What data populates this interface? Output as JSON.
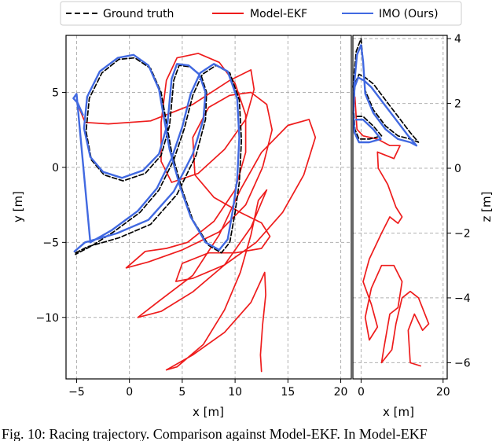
{
  "chart_data": [
    {
      "type": "line",
      "xlabel": "x [m]",
      "ylabel": "y [m]",
      "xlim": [
        -6,
        21
      ],
      "ylim": [
        -14.1,
        8.8
      ],
      "xticks": [
        -5,
        0,
        5,
        10,
        15,
        20
      ],
      "yticks": [
        -10,
        -5,
        0,
        5
      ],
      "grid": true,
      "legend": "top",
      "series": [
        {
          "name": "Ground truth",
          "color": "#000000",
          "dash": true,
          "points": [
            [
              -5.1,
              -5.7
            ],
            [
              -4.0,
              -5.3
            ],
            [
              -1.0,
              -4.7
            ],
            [
              2.0,
              -3.8
            ],
            [
              4.5,
              -1.8
            ],
            [
              6.3,
              0.8
            ],
            [
              7.2,
              3.2
            ],
            [
              7.3,
              5.0
            ],
            [
              6.8,
              6.1
            ],
            [
              5.8,
              6.7
            ],
            [
              4.7,
              6.8
            ],
            [
              4.2,
              5.8
            ],
            [
              3.8,
              2.8
            ],
            [
              3.0,
              0.8
            ],
            [
              1.5,
              -0.4
            ],
            [
              -0.6,
              -0.9
            ],
            [
              -2.4,
              -0.5
            ],
            [
              -3.6,
              0.5
            ],
            [
              -4.1,
              2.4
            ],
            [
              -3.8,
              4.6
            ],
            [
              -2.6,
              6.3
            ],
            [
              -1.0,
              7.2
            ],
            [
              0.5,
              7.3
            ],
            [
              2.0,
              6.6
            ],
            [
              3.0,
              5.0
            ],
            [
              3.5,
              3.0
            ],
            [
              4.0,
              1.0
            ],
            [
              5.0,
              -1.5
            ],
            [
              6.0,
              -3.5
            ],
            [
              7.5,
              -5.2
            ],
            [
              8.7,
              -5.7
            ],
            [
              9.5,
              -5.0
            ],
            [
              10.0,
              -3.0
            ],
            [
              10.4,
              -1.0
            ],
            [
              10.6,
              1.8
            ],
            [
              10.4,
              4.5
            ],
            [
              9.5,
              6.3
            ],
            [
              8.2,
              6.8
            ],
            [
              6.9,
              6.2
            ],
            [
              6.0,
              4.8
            ],
            [
              5.2,
              2.6
            ],
            [
              4.2,
              0.5
            ],
            [
              2.8,
              -1.5
            ],
            [
              1.0,
              -3.0
            ],
            [
              -1.5,
              -4.3
            ],
            [
              -3.5,
              -5.2
            ],
            [
              -5.1,
              -5.8
            ]
          ]
        },
        {
          "name": "Model-EKF",
          "color": "#ee1c1c",
          "dash": false,
          "points": [
            [
              -5.0,
              4.4
            ],
            [
              -4.2,
              3.0
            ],
            [
              -2.0,
              2.9
            ],
            [
              2.0,
              3.1
            ],
            [
              6.0,
              4.2
            ],
            [
              9.5,
              5.8
            ],
            [
              11.5,
              6.5
            ],
            [
              11.8,
              5.2
            ],
            [
              11.0,
              3.2
            ],
            [
              9.0,
              1.2
            ],
            [
              6.5,
              -0.4
            ],
            [
              4.0,
              -1.0
            ],
            [
              3.0,
              0.4
            ],
            [
              3.0,
              3.0
            ],
            [
              3.5,
              5.8
            ],
            [
              4.5,
              7.3
            ],
            [
              6.5,
              7.6
            ],
            [
              8.5,
              7.0
            ],
            [
              10.0,
              5.6
            ],
            [
              11.0,
              3.5
            ],
            [
              11.0,
              1.0
            ],
            [
              10.0,
              -1.5
            ],
            [
              8.0,
              -3.6
            ],
            [
              5.5,
              -5.0
            ],
            [
              3.5,
              -5.4
            ],
            [
              1.5,
              -5.6
            ],
            [
              -0.3,
              -6.7
            ],
            [
              1.8,
              -6.3
            ],
            [
              5.0,
              -5.5
            ],
            [
              8.5,
              -4.3
            ],
            [
              11.0,
              -2.5
            ],
            [
              12.6,
              0.0
            ],
            [
              13.5,
              2.5
            ],
            [
              13.0,
              4.2
            ],
            [
              11.5,
              5.0
            ],
            [
              9.5,
              4.8
            ],
            [
              7.5,
              4.0
            ],
            [
              6.0,
              2.0
            ],
            [
              6.2,
              -0.5
            ],
            [
              8.0,
              -2.0
            ],
            [
              10.5,
              -3.0
            ],
            [
              12.5,
              -3.7
            ],
            [
              13.3,
              -4.6
            ],
            [
              12.5,
              -5.4
            ],
            [
              10.0,
              -5.7
            ],
            [
              7.5,
              -5.7
            ],
            [
              5.0,
              -6.4
            ],
            [
              4.4,
              -7.6
            ],
            [
              6.0,
              -7.4
            ],
            [
              9.0,
              -6.5
            ],
            [
              12.0,
              -5.0
            ],
            [
              14.5,
              -3.0
            ],
            [
              16.5,
              -0.5
            ],
            [
              17.6,
              2.0
            ],
            [
              17.0,
              3.2
            ],
            [
              15.0,
              2.8
            ],
            [
              12.5,
              1.0
            ],
            [
              10.5,
              -1.5
            ],
            [
              8.5,
              -4.5
            ],
            [
              6.0,
              -7.2
            ],
            [
              3.0,
              -8.8
            ],
            [
              0.8,
              -10.0
            ],
            [
              3.0,
              -9.6
            ],
            [
              6.0,
              -8.3
            ],
            [
              9.0,
              -6.5
            ],
            [
              11.5,
              -4.0
            ],
            [
              13.0,
              -1.5
            ],
            [
              12.2,
              -2.2
            ],
            [
              11.5,
              -4.5
            ],
            [
              10.5,
              -7.0
            ],
            [
              9.0,
              -9.5
            ],
            [
              7.0,
              -11.8
            ],
            [
              4.5,
              -13.3
            ],
            [
              3.5,
              -13.5
            ],
            [
              6.0,
              -12.5
            ],
            [
              9.0,
              -11.0
            ],
            [
              11.5,
              -9.0
            ],
            [
              12.8,
              -7.0
            ],
            [
              12.9,
              -8.5
            ],
            [
              12.6,
              -10.5
            ],
            [
              12.4,
              -12.5
            ],
            [
              12.5,
              -13.6
            ]
          ]
        },
        {
          "name": "IMO (Ours)",
          "color": "#4169e1",
          "dash": false,
          "points": [
            [
              -5.2,
              -5.6
            ],
            [
              -4.2,
              -5.0
            ],
            [
              -1.2,
              -4.4
            ],
            [
              1.8,
              -3.5
            ],
            [
              4.2,
              -1.6
            ],
            [
              6.0,
              0.9
            ],
            [
              7.0,
              3.2
            ],
            [
              7.2,
              5.0
            ],
            [
              6.6,
              6.2
            ],
            [
              5.6,
              6.8
            ],
            [
              4.5,
              6.9
            ],
            [
              4.0,
              5.9
            ],
            [
              3.6,
              2.9
            ],
            [
              2.8,
              0.9
            ],
            [
              1.3,
              -0.2
            ],
            [
              -0.7,
              -0.7
            ],
            [
              -2.5,
              -0.3
            ],
            [
              -3.7,
              0.7
            ],
            [
              -4.3,
              2.6
            ],
            [
              -4.0,
              4.7
            ],
            [
              -2.8,
              6.4
            ],
            [
              -1.1,
              7.3
            ],
            [
              0.4,
              7.5
            ],
            [
              1.8,
              6.8
            ],
            [
              2.8,
              5.2
            ],
            [
              3.3,
              3.2
            ],
            [
              3.8,
              1.2
            ],
            [
              4.8,
              -1.3
            ],
            [
              5.8,
              -3.3
            ],
            [
              7.2,
              -5.0
            ],
            [
              8.5,
              -5.5
            ],
            [
              9.3,
              -4.8
            ],
            [
              9.8,
              -2.8
            ],
            [
              10.2,
              -0.8
            ],
            [
              10.4,
              2.0
            ],
            [
              10.2,
              4.6
            ],
            [
              9.3,
              6.4
            ],
            [
              8.0,
              6.9
            ],
            [
              6.7,
              6.3
            ],
            [
              5.8,
              4.9
            ],
            [
              5.0,
              2.7
            ],
            [
              4.0,
              0.6
            ],
            [
              2.6,
              -1.4
            ],
            [
              0.8,
              -2.9
            ],
            [
              -1.7,
              -4.2
            ],
            [
              -3.7,
              -5.0
            ],
            [
              -5.0,
              4.9
            ],
            [
              -5.3,
              4.6
            ],
            [
              -4.9,
              4.3
            ],
            [
              -4.4,
              3.5
            ]
          ]
        }
      ]
    },
    {
      "type": "line",
      "xlabel": "x [m]",
      "ylabel": "z [m]",
      "xlim": [
        -2,
        21
      ],
      "ylim": [
        -6.5,
        4.1
      ],
      "xticks": [
        0,
        20
      ],
      "yticks": [
        -6,
        -4,
        -2,
        0,
        2,
        4
      ],
      "grid": true,
      "series": [
        {
          "name": "Ground truth",
          "color": "#000000",
          "dash": true,
          "points": [
            [
              -2.0,
              2.5
            ],
            [
              -1.2,
              3.6
            ],
            [
              0.0,
              4.0
            ],
            [
              0.4,
              3.4
            ],
            [
              1.0,
              2.4
            ],
            [
              3.0,
              1.8
            ],
            [
              6.0,
              1.3
            ],
            [
              9.0,
              1.0
            ],
            [
              12.0,
              0.9
            ],
            [
              14.0,
              0.8
            ],
            [
              12.0,
              1.1
            ],
            [
              9.0,
              1.6
            ],
            [
              6.0,
              2.1
            ],
            [
              3.0,
              2.6
            ],
            [
              1.0,
              2.8
            ],
            [
              -0.5,
              2.9
            ],
            [
              -1.5,
              2.6
            ],
            [
              -1.8,
              1.8
            ],
            [
              -1.5,
              1.2
            ],
            [
              -0.5,
              0.9
            ],
            [
              2.0,
              0.9
            ],
            [
              5.0,
              1.0
            ],
            [
              3.0,
              1.3
            ],
            [
              0.5,
              1.6
            ],
            [
              -1.0,
              1.6
            ]
          ]
        },
        {
          "name": "Model-EKF",
          "color": "#ee1c1c",
          "dash": false,
          "points": [
            [
              -1.5,
              2.2
            ],
            [
              -1.0,
              1.2
            ],
            [
              0.5,
              1.0
            ],
            [
              4.0,
              0.9
            ],
            [
              7.0,
              0.7
            ],
            [
              9.5,
              0.7
            ],
            [
              8.0,
              0.3
            ],
            [
              4.0,
              0.5
            ],
            [
              4.2,
              0.0
            ],
            [
              6.5,
              -0.5
            ],
            [
              8.5,
              -1.2
            ],
            [
              10.0,
              -1.5
            ],
            [
              9.0,
              -1.7
            ],
            [
              7.0,
              -1.5
            ],
            [
              5.0,
              -2.0
            ],
            [
              2.0,
              -2.8
            ],
            [
              0.5,
              -3.5
            ],
            [
              2.5,
              -4.2
            ],
            [
              4.0,
              -4.9
            ],
            [
              2.0,
              -5.3
            ],
            [
              1.0,
              -4.6
            ],
            [
              2.5,
              -3.7
            ],
            [
              5.0,
              -3.0
            ],
            [
              8.0,
              -3.0
            ],
            [
              10.0,
              -3.5
            ],
            [
              9.0,
              -4.3
            ],
            [
              7.0,
              -4.5
            ],
            [
              5.5,
              -5.6
            ],
            [
              5.0,
              -6.0
            ],
            [
              7.5,
              -5.6
            ],
            [
              8.5,
              -4.8
            ],
            [
              10.0,
              -4.0
            ],
            [
              12.0,
              -3.8
            ],
            [
              14.0,
              -4.0
            ],
            [
              16.5,
              -4.8
            ],
            [
              15.0,
              -5.0
            ],
            [
              13.0,
              -4.5
            ],
            [
              11.5,
              -5.0
            ],
            [
              12.0,
              -6.0
            ],
            [
              14.5,
              -6.1
            ]
          ]
        },
        {
          "name": "IMO (Ours)",
          "color": "#4169e1",
          "dash": false,
          "points": [
            [
              -1.8,
              2.4
            ],
            [
              -1.0,
              3.5
            ],
            [
              0.0,
              3.8
            ],
            [
              0.5,
              3.3
            ],
            [
              1.0,
              2.3
            ],
            [
              3.0,
              1.7
            ],
            [
              6.0,
              1.2
            ],
            [
              9.0,
              0.9
            ],
            [
              12.0,
              0.8
            ],
            [
              13.5,
              0.7
            ],
            [
              11.5,
              1.0
            ],
            [
              8.5,
              1.5
            ],
            [
              5.5,
              2.0
            ],
            [
              2.5,
              2.5
            ],
            [
              0.8,
              2.7
            ],
            [
              -0.7,
              2.8
            ],
            [
              -1.6,
              2.5
            ],
            [
              -1.9,
              1.7
            ],
            [
              -1.6,
              1.1
            ],
            [
              -0.5,
              0.8
            ],
            [
              2.0,
              0.8
            ],
            [
              4.8,
              0.9
            ],
            [
              3.0,
              1.2
            ],
            [
              0.5,
              1.5
            ],
            [
              -1.2,
              1.5
            ]
          ]
        }
      ]
    }
  ],
  "caption": "Fig. 10: Racing trajectory. Comparison against Model-EKF. In Model-EKF"
}
